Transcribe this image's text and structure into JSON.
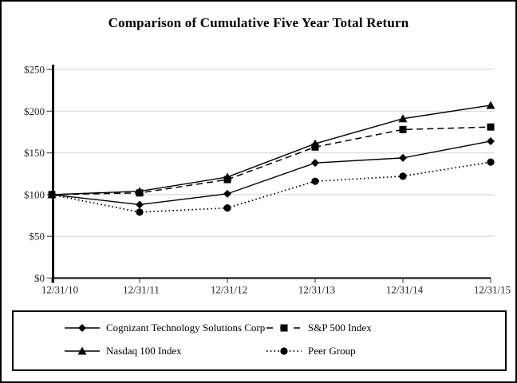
{
  "chart_data": {
    "type": "line",
    "title": "Comparison of Cumulative Five Year Total Return",
    "x_labels": [
      "12/31/10",
      "12/31/11",
      "12/31/12",
      "12/31/13",
      "12/31/14",
      "12/31/15"
    ],
    "y_tick_labels": [
      "$0",
      "$50",
      "$100",
      "$150",
      "$200",
      "$250"
    ],
    "ylim": [
      0,
      250
    ],
    "y_tick_step": 50,
    "grid": true,
    "legend_position": "bottom-box",
    "series": [
      {
        "name": "Cognizant Technology Solutions Corp",
        "marker": "diamond",
        "line_style": "solid",
        "values": [
          100,
          88,
          101,
          138,
          144,
          164
        ]
      },
      {
        "name": "S&P 500 Index",
        "marker": "square",
        "line_style": "dashed",
        "values": [
          100,
          102,
          118,
          157,
          178,
          181
        ]
      },
      {
        "name": "Nasdaq 100 Index",
        "marker": "triangle",
        "line_style": "solid",
        "values": [
          100,
          104,
          121,
          161,
          191,
          207
        ]
      },
      {
        "name": "Peer Group",
        "marker": "circle",
        "line_style": "dotted",
        "values": [
          100,
          79,
          84,
          116,
          122,
          139
        ]
      }
    ],
    "colors": {
      "series": "#000000",
      "grid": "#d9d9d9",
      "axis": "#000000",
      "tick": "#4d4d4d",
      "background": "#ffffff",
      "frame_border": "#000000"
    }
  }
}
